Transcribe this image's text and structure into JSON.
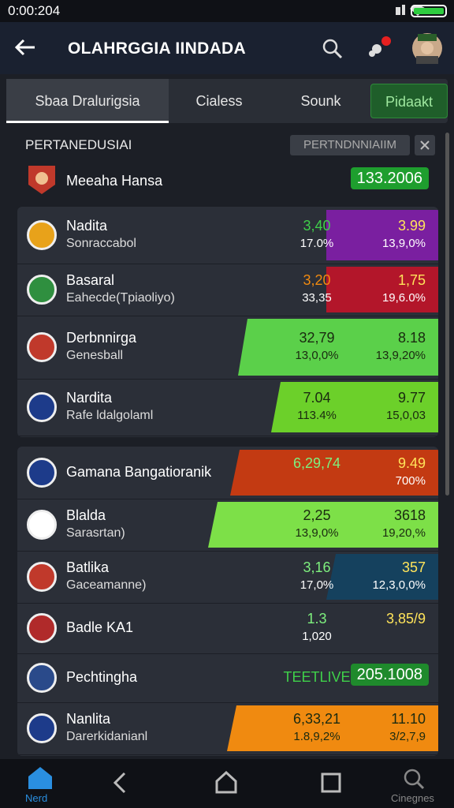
{
  "status": {
    "time": "0:00:204"
  },
  "header": {
    "title": "OLAHRGGIA IINDADA"
  },
  "tabs": [
    "Sbaa Dralurigsia",
    "Cialess",
    "Sounk",
    "Pidaakt"
  ],
  "section": {
    "title": "PERTANEDUSIAI",
    "filter": "PERTNDNNIAIIM"
  },
  "featured": {
    "name": "Meeaha Hansa",
    "score": "133.2006"
  },
  "groups": [
    [
      {
        "name": "Nadita",
        "sub": "Sonraccabol",
        "o1": "3,40",
        "p1": "17.0%",
        "o2": "3.99",
        "p2": "13,9,0%"
      },
      {
        "name": "Basaral",
        "sub": "Eahecde(Tpiaoliyo)",
        "o1": "3,20",
        "p1": "33,35",
        "o2": "1,75",
        "p2": "19,6.0%"
      },
      {
        "name": "Derbnnirga",
        "sub": "Genesball",
        "o1": "32,79",
        "p1": "13,0,0%",
        "o2": "8.18",
        "p2": "13,9,20%"
      },
      {
        "name": "Nardita",
        "sub": "Rafe ldalgolaml",
        "o1": "7.04",
        "p1": "113.4%",
        "o2": "9.77",
        "p2": "15,0,03"
      }
    ],
    [
      {
        "name": "Gamana Bangatioranik",
        "o1": "6,29,74",
        "o2": "9.49",
        "p2": "700%"
      },
      {
        "name": "Blalda",
        "sub": "Sarasrtan)",
        "o1": "2,25",
        "p1": "13,9,0%",
        "o2": "3618",
        "p2": "19,20,%"
      },
      {
        "name": "Batlika",
        "sub": "Gaceamanne)",
        "o1": "3,16",
        "p1": "17,0%",
        "o2": "357",
        "p2": "12,3,0,0%"
      },
      {
        "name": "Badle KA1",
        "o1": "1.3",
        "p1": "1,020",
        "o2": "3,85/9"
      },
      {
        "name": "Pechtingha",
        "o1": "TEETLIVE",
        "score": "205.1008"
      },
      {
        "name": "Nanlita",
        "sub": "Darerkidanianl",
        "o1": "6,33,21",
        "p1": "1.8,9,2%",
        "o2": "11.10",
        "p2": "3/2,7,9"
      }
    ]
  ],
  "nav": [
    "Nerd",
    "Cinegnes"
  ]
}
